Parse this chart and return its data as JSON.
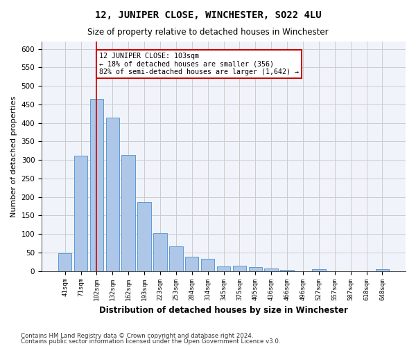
{
  "title": "12, JUNIPER CLOSE, WINCHESTER, SO22 4LU",
  "subtitle": "Size of property relative to detached houses in Winchester",
  "xlabel": "Distribution of detached houses by size in Winchester",
  "ylabel": "Number of detached properties",
  "categories": [
    "41sqm",
    "71sqm",
    "102sqm",
    "132sqm",
    "162sqm",
    "193sqm",
    "223sqm",
    "253sqm",
    "284sqm",
    "314sqm",
    "345sqm",
    "375sqm",
    "405sqm",
    "436sqm",
    "466sqm",
    "496sqm",
    "527sqm",
    "557sqm",
    "587sqm",
    "618sqm",
    "648sqm"
  ],
  "values": [
    48,
    312,
    465,
    415,
    313,
    187,
    103,
    67,
    39,
    33,
    13,
    15,
    10,
    6,
    4,
    0,
    5,
    0,
    0,
    0,
    5
  ],
  "bar_color": "#aec6e8",
  "bar_edge_color": "#5b9bd5",
  "highlight_bar_index": 2,
  "vline_x_index": 2,
  "vline_color": "#cc0000",
  "annotation_text": "12 JUNIPER CLOSE: 103sqm\n← 18% of detached houses are smaller (356)\n82% of semi-detached houses are larger (1,642) →",
  "annotation_box_color": "#ffffff",
  "annotation_box_edge_color": "#cc0000",
  "ylim": [
    0,
    620
  ],
  "yticks": [
    0,
    50,
    100,
    150,
    200,
    250,
    300,
    350,
    400,
    450,
    500,
    550,
    600
  ],
  "grid_color": "#cccccc",
  "background_color": "#f0f4fa",
  "footer_line1": "Contains HM Land Registry data © Crown copyright and database right 2024.",
  "footer_line2": "Contains public sector information licensed under the Open Government Licence v3.0."
}
